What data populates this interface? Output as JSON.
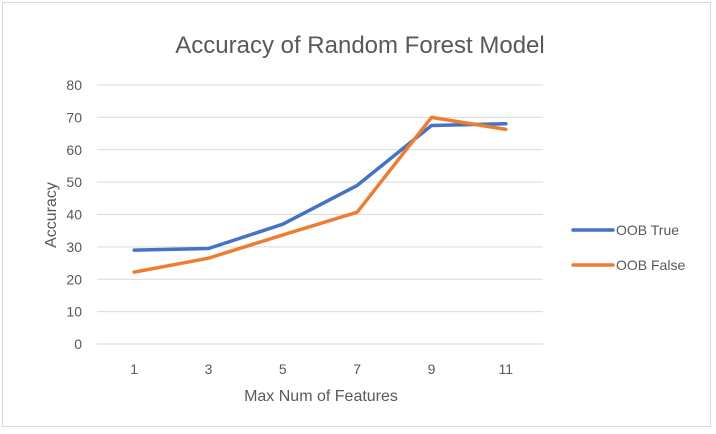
{
  "chart_data": {
    "type": "line",
    "title": "Accuracy of Random Forest Model",
    "xlabel": "Max Num of Features",
    "ylabel": "Accuracy",
    "categories": [
      "1",
      "3",
      "5",
      "7",
      "9",
      "11"
    ],
    "ylim": [
      0,
      80
    ],
    "yticks": [
      0,
      10,
      20,
      30,
      40,
      50,
      60,
      70,
      80
    ],
    "grid": true,
    "legend_position": "right",
    "series": [
      {
        "name": "OOB True",
        "color": "#4472C4",
        "values": [
          29,
          29.5,
          37,
          49,
          67.5,
          68
        ]
      },
      {
        "name": "OOB False",
        "color": "#ED7D31",
        "values": [
          22.2,
          26.5,
          33.7,
          40.7,
          70,
          66.3
        ]
      }
    ]
  }
}
